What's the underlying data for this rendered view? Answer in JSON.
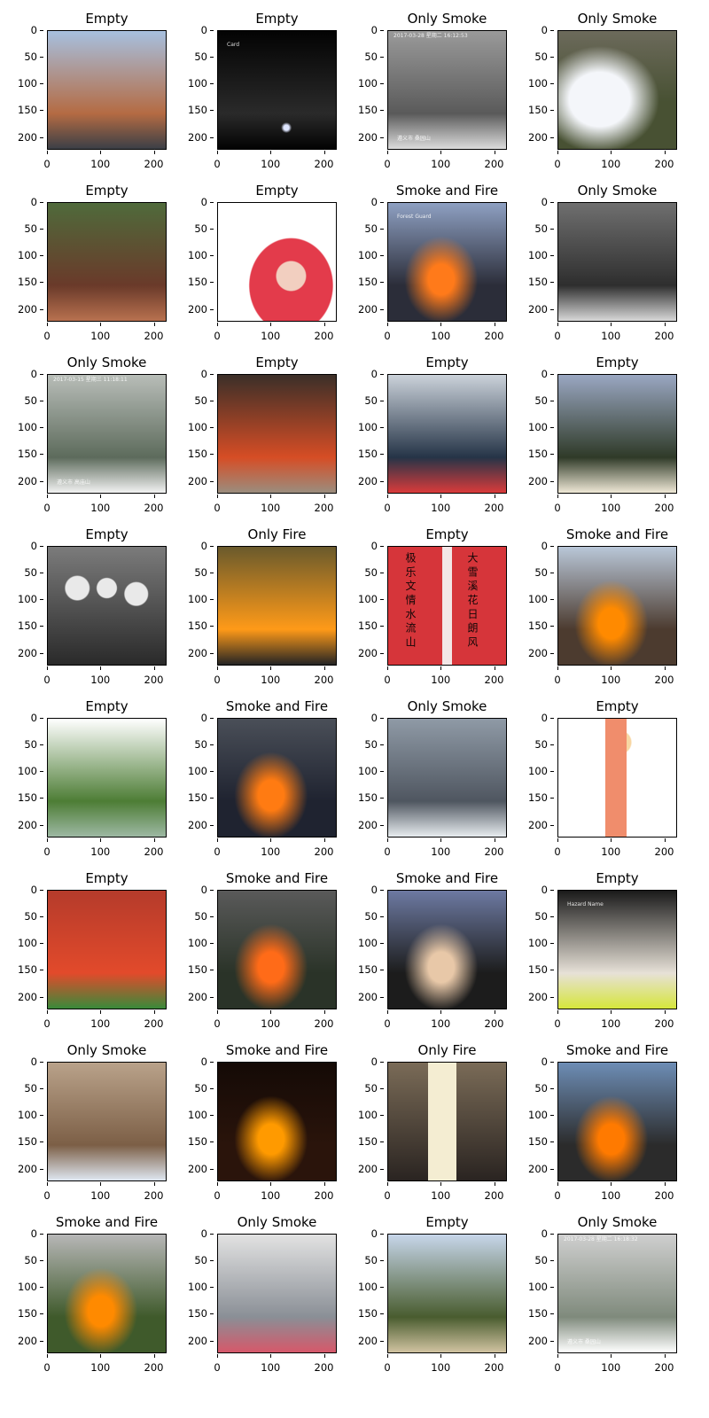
{
  "figure": {
    "axis": {
      "x_ticks": [
        "0",
        "100",
        "200"
      ],
      "y_ticks": [
        "0",
        "50",
        "100",
        "150",
        "200"
      ],
      "x_range": [
        0,
        224
      ],
      "y_range": [
        0,
        224
      ]
    },
    "panels": [
      {
        "label": "Empty",
        "scene": "brick-building",
        "colors": {
          "bg": "#a7c0df",
          "a": "#b46b43",
          "b": "#3b3f46"
        }
      },
      {
        "label": "Empty",
        "scene": "night-street",
        "colors": {
          "bg": "#030303",
          "a": "#2a2a2a",
          "b": "#dfe6ff"
        },
        "overlay": [
          "Card"
        ]
      },
      {
        "label": "Only Smoke",
        "scene": "mountain-smoke-gray",
        "colors": {
          "bg": "#9a9a9a",
          "a": "#5a5a5a",
          "b": "#dcdcdc"
        },
        "overlay": [
          "2017-03-28 星期二 16:12:53",
          "遵义市 桑园山"
        ]
      },
      {
        "label": "Only Smoke",
        "scene": "white-smoke-grass",
        "colors": {
          "bg": "#6c6a5b",
          "a": "#485133",
          "b": "#f4f6fa"
        }
      },
      {
        "label": "Empty",
        "scene": "forest-park",
        "colors": {
          "bg": "#4f6a3b",
          "a": "#6a3a2a",
          "b": "#b8714f"
        }
      },
      {
        "label": "Empty",
        "scene": "red-hood-person",
        "colors": {
          "bg": "#ffffff",
          "a": "#e33b4b",
          "b": "#f2cfc0"
        }
      },
      {
        "label": "Smoke and Fire",
        "scene": "valley-fire",
        "colors": {
          "bg": "#8ea0c2",
          "a": "#2b2d39",
          "b": "#ff7a1a"
        },
        "overlay": [
          "Forest Guard"
        ]
      },
      {
        "label": "Only Smoke",
        "scene": "dark-slope-smoke",
        "colors": {
          "bg": "#6f6f6f",
          "a": "#2e2e2e",
          "b": "#d8d8d8"
        }
      },
      {
        "label": "Only Smoke",
        "scene": "foggy-forest-smoke",
        "colors": {
          "bg": "#b8bdb8",
          "a": "#5d6b5c",
          "b": "#f2f2f2"
        },
        "overlay": [
          "2017-03-15 星期三 11:18:11",
          "遵义市 高庙山"
        ]
      },
      {
        "label": "Empty",
        "scene": "orange-pipes",
        "colors": {
          "bg": "#3b2f28",
          "a": "#d64d25",
          "b": "#9b8d7e"
        }
      },
      {
        "label": "Empty",
        "scene": "meeting-room",
        "colors": {
          "bg": "#cbd2da",
          "a": "#253447",
          "b": "#d93b3b"
        }
      },
      {
        "label": "Empty",
        "scene": "aerial-city",
        "colors": {
          "bg": "#9aa7c2",
          "a": "#2f3a28",
          "b": "#efe8d6"
        }
      },
      {
        "label": "Empty",
        "scene": "bw-group-photo",
        "colors": {
          "bg": "#7b7b7b",
          "a": "#2a2a2a",
          "b": "#e9e9e9"
        }
      },
      {
        "label": "Only Fire",
        "scene": "hand-fire",
        "colors": {
          "bg": "#6a5a2c",
          "a": "#ff9a18",
          "b": "#242424"
        }
      },
      {
        "label": "Empty",
        "scene": "red-couplet",
        "colors": {
          "bg": "#d6353a",
          "a": "#1a0c0c",
          "b": "#f3e6e6"
        },
        "overlay": [
          "极 乐 文 情 水 流 山",
          "大 雪 溪 花 日 朗 风"
        ]
      },
      {
        "label": "Smoke and Fire",
        "scene": "grass-fire-smoke",
        "colors": {
          "bg": "#b9c7d8",
          "a": "#4c3b2f",
          "b": "#ff8a00"
        }
      },
      {
        "label": "Empty",
        "scene": "green-hill",
        "colors": {
          "bg": "#ffffff",
          "a": "#4d7d35",
          "b": "#9db8a3"
        }
      },
      {
        "label": "Smoke and Fire",
        "scene": "burning-car",
        "colors": {
          "bg": "#4a4f58",
          "a": "#1f2330",
          "b": "#ff7b12"
        }
      },
      {
        "label": "Only Smoke",
        "scene": "gray-smoke-cloud",
        "colors": {
          "bg": "#8f9aa6",
          "a": "#4f5660",
          "b": "#e7ecef"
        }
      },
      {
        "label": "Empty",
        "scene": "cartoon-girl",
        "colors": {
          "bg": "#ffffff",
          "a": "#f08d6c",
          "b": "#f7d6a3"
        }
      },
      {
        "label": "Empty",
        "scene": "red-peppers",
        "colors": {
          "bg": "#b53b2b",
          "a": "#e24a2b",
          "b": "#3a8a3a"
        }
      },
      {
        "label": "Smoke and Fire",
        "scene": "house-fire",
        "colors": {
          "bg": "#5a5a5a",
          "a": "#2a3328",
          "b": "#ff6b18"
        }
      },
      {
        "label": "Smoke and Fire",
        "scene": "black-smoke-lot",
        "colors": {
          "bg": "#6d7aa2",
          "a": "#1c1c1c",
          "b": "#e8c8a8"
        }
      },
      {
        "label": "Empty",
        "scene": "helmet-worker",
        "colors": {
          "bg": "#1a1a1a",
          "a": "#e7e1d7",
          "b": "#d6e63b"
        },
        "overlay": [
          "Hazard Name"
        ]
      },
      {
        "label": "Only Smoke",
        "scene": "tilted-smoke-field",
        "colors": {
          "bg": "#b9a28a",
          "a": "#7c5f46",
          "b": "#dfe7f1"
        }
      },
      {
        "label": "Smoke and Fire",
        "scene": "night-fire",
        "colors": {
          "bg": "#140a06",
          "a": "#2a140b",
          "b": "#ff9a00"
        }
      },
      {
        "label": "Only Fire",
        "scene": "candle",
        "colors": {
          "bg": "#7a6b57",
          "a": "#2a2421",
          "b": "#f4edd2"
        }
      },
      {
        "label": "Smoke and Fire",
        "scene": "hillside-fire",
        "colors": {
          "bg": "#6d8db5",
          "a": "#2b2b2b",
          "b": "#ff7a00"
        }
      },
      {
        "label": "Smoke and Fire",
        "scene": "field-fire",
        "colors": {
          "bg": "#b7b7b7",
          "a": "#3f5a2b",
          "b": "#ff8a00"
        }
      },
      {
        "label": "Only Smoke",
        "scene": "building-smoke",
        "colors": {
          "bg": "#e2e2e2",
          "a": "#8a8f96",
          "b": "#d6586a"
        }
      },
      {
        "label": "Empty",
        "scene": "aerial-road",
        "colors": {
          "bg": "#c7d6ea",
          "a": "#495c2f",
          "b": "#d1c3a1"
        }
      },
      {
        "label": "Only Smoke",
        "scene": "misty-valley",
        "colors": {
          "bg": "#cfcfcf",
          "a": "#7f8a7c",
          "b": "#ffffff"
        },
        "overlay": [
          "2017-03-28 星期二 16:18:32",
          "遵义市 桑园山"
        ]
      }
    ]
  }
}
